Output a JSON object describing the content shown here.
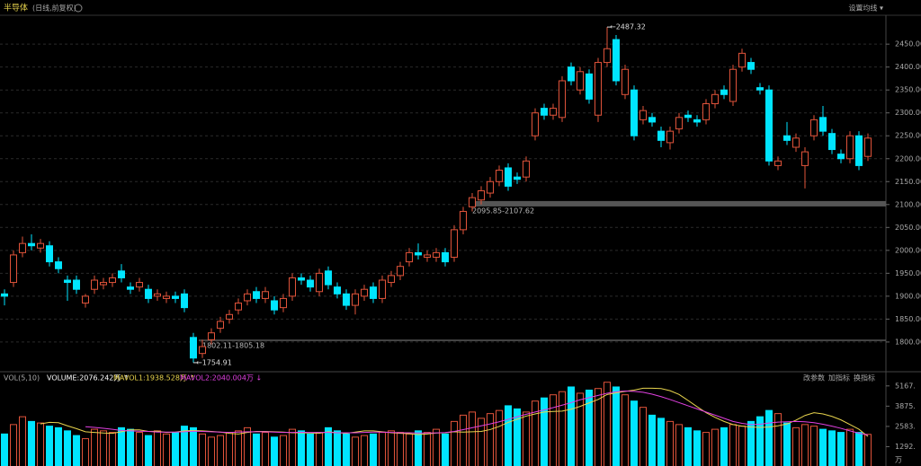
{
  "chart_data": {
    "type": "candlestick",
    "title": "半导体",
    "subtitle": "(日线,前复权)",
    "menu": "设置均线 ▾",
    "up_color": "#e0533a",
    "down_color": "#00e5ff",
    "ylim": [
      1743,
      2513
    ],
    "yticks": [
      {
        "value": 2450,
        "label": "2450.00"
      },
      {
        "value": 2400,
        "label": "2400.00"
      },
      {
        "value": 2350,
        "label": "2350.00"
      },
      {
        "value": 2300,
        "label": "2300.00"
      },
      {
        "value": 2250,
        "label": "2250.00"
      },
      {
        "value": 2200,
        "label": "2200.00"
      },
      {
        "value": 2150,
        "label": "2150.00"
      },
      {
        "value": 2100,
        "label": "2100.00"
      },
      {
        "value": 2050,
        "label": "2050.00"
      },
      {
        "value": 2000,
        "label": "2000.00"
      },
      {
        "value": 1950,
        "label": "1950.00"
      },
      {
        "value": 1900,
        "label": "1900.00"
      },
      {
        "value": 1850,
        "label": "1850.00"
      },
      {
        "value": 1800,
        "label": "1800.00"
      }
    ],
    "grid": true,
    "open": [
      1905,
      1930,
      1995,
      2015,
      2005,
      2010,
      1975,
      1935,
      1935,
      1885,
      1915,
      1925,
      1930,
      1955,
      1920,
      1920,
      1915,
      1900,
      1895,
      1900,
      1905,
      1810,
      1775,
      1805,
      1830,
      1850,
      1870,
      1890,
      1910,
      1895,
      1890,
      1875,
      1900,
      1940,
      1935,
      1910,
      1955,
      1920,
      1905,
      1880,
      1900,
      1920,
      1895,
      1930,
      1945,
      1975,
      1995,
      1985,
      1985,
      1995,
      1985,
      2045,
      2095,
      2110,
      2125,
      2150,
      2180,
      2160,
      2160,
      2250,
      2310,
      2295,
      2290,
      2400,
      2350,
      2385,
      2295,
      2410,
      2460,
      2340,
      2350,
      2285,
      2290,
      2260,
      2235,
      2265,
      2295,
      2285,
      2285,
      2320,
      2350,
      2325,
      2400,
      2410,
      2355,
      2350,
      2185,
      2250,
      2225,
      2185,
      2250,
      2290,
      2255,
      2210,
      2200,
      2250,
      2205
    ],
    "high": [
      1915,
      2000,
      2030,
      2035,
      2025,
      2020,
      1985,
      1945,
      1945,
      1905,
      1945,
      1940,
      1950,
      1970,
      1930,
      1940,
      1925,
      1915,
      1910,
      1910,
      1915,
      1820,
      1805,
      1830,
      1855,
      1870,
      1895,
      1915,
      1920,
      1920,
      1900,
      1905,
      1950,
      1950,
      1945,
      1960,
      1965,
      1930,
      1915,
      1915,
      1925,
      1930,
      1945,
      1955,
      1975,
      2005,
      2015,
      2000,
      2005,
      2005,
      2055,
      2095,
      2125,
      2140,
      2160,
      2185,
      2190,
      2170,
      2205,
      2310,
      2320,
      2320,
      2380,
      2410,
      2400,
      2395,
      2420,
      2487.32,
      2470,
      2405,
      2360,
      2315,
      2300,
      2270,
      2270,
      2300,
      2305,
      2295,
      2330,
      2350,
      2360,
      2405,
      2440,
      2420,
      2365,
      2360,
      2205,
      2280,
      2255,
      2225,
      2295,
      2315,
      2265,
      2220,
      2260,
      2260,
      2255
    ],
    "low": [
      1880,
      1920,
      1985,
      2000,
      1995,
      1965,
      1950,
      1890,
      1905,
      1875,
      1905,
      1915,
      1920,
      1930,
      1905,
      1910,
      1885,
      1890,
      1885,
      1885,
      1865,
      1754.91,
      1765,
      1795,
      1820,
      1840,
      1860,
      1880,
      1885,
      1885,
      1860,
      1865,
      1890,
      1925,
      1910,
      1900,
      1915,
      1895,
      1870,
      1860,
      1890,
      1885,
      1885,
      1920,
      1935,
      1965,
      1980,
      1975,
      1975,
      1965,
      1975,
      2035,
      2085,
      2100,
      2115,
      2140,
      2130,
      2145,
      2150,
      2240,
      2285,
      2285,
      2280,
      2360,
      2340,
      2320,
      2280,
      2400,
      2360,
      2330,
      2240,
      2275,
      2270,
      2225,
      2220,
      2255,
      2280,
      2270,
      2275,
      2310,
      2330,
      2315,
      2390,
      2385,
      2340,
      2185,
      2175,
      2230,
      2215,
      2135,
      2240,
      2250,
      2210,
      2190,
      2190,
      2175,
      2195
    ],
    "close": [
      1900,
      1990,
      2015,
      2010,
      2015,
      1975,
      1960,
      1930,
      1915,
      1900,
      1935,
      1930,
      1940,
      1940,
      1915,
      1930,
      1895,
      1905,
      1900,
      1895,
      1875,
      1765,
      1790,
      1820,
      1845,
      1860,
      1885,
      1905,
      1895,
      1910,
      1870,
      1895,
      1940,
      1935,
      1920,
      1950,
      1925,
      1905,
      1880,
      1905,
      1915,
      1895,
      1935,
      1945,
      1965,
      1995,
      1990,
      1990,
      1995,
      1975,
      2045,
      2085,
      2115,
      2130,
      2150,
      2175,
      2140,
      2155,
      2195,
      2300,
      2295,
      2310,
      2370,
      2370,
      2390,
      2330,
      2410,
      2440,
      2370,
      2395,
      2250,
      2305,
      2280,
      2240,
      2260,
      2290,
      2290,
      2280,
      2320,
      2340,
      2340,
      2395,
      2430,
      2395,
      2350,
      2195,
      2195,
      2240,
      2245,
      2215,
      2285,
      2260,
      2220,
      2200,
      2250,
      2185,
      2245
    ],
    "annotations": [
      {
        "label": "←2487.32",
        "value": 2487.32,
        "index": 67
      },
      {
        "label": "←1754.91",
        "value": 1754.91,
        "index": 21
      }
    ],
    "bands": [
      {
        "label": "2095.85-2107.62",
        "from": 2095.85,
        "to": 2107.62,
        "start": 52
      },
      {
        "label": "1802.11-1805.18",
        "from": 1802.11,
        "to": 1805.18,
        "start": 22
      }
    ],
    "volume": {
      "title": "VOL(5,10)",
      "readouts": [
        {
          "text": "VOLUME:2076.242万 ↑",
          "color": "#ffffff"
        },
        {
          "text": "MAVOL1:1938.528万 ↑",
          "color": "#e8d44d"
        },
        {
          "text": "MAVOL2:2040.004万 ↓",
          "color": "#e040e0"
        }
      ],
      "buttons": [
        "改参数",
        "加指标",
        "换指标"
      ],
      "ylim": [
        0,
        5728
      ],
      "yticks": [
        {
          "value": 5167,
          "label": "5167."
        },
        {
          "value": 3875,
          "label": "3875."
        },
        {
          "value": 2583,
          "label": "2583."
        },
        {
          "value": 1292,
          "label": "1292."
        }
      ],
      "unit": "万",
      "values": [
        2100,
        2700,
        3200,
        2900,
        2800,
        2600,
        2500,
        2300,
        2000,
        1800,
        2400,
        2300,
        2200,
        2500,
        2400,
        2200,
        2000,
        2300,
        2100,
        2200,
        2600,
        2500,
        2100,
        1900,
        2000,
        2200,
        2300,
        2500,
        2100,
        2200,
        1900,
        2000,
        2400,
        2300,
        2100,
        2200,
        2500,
        2300,
        2100,
        1900,
        2000,
        2100,
        2200,
        2300,
        2200,
        2100,
        2300,
        2200,
        2400,
        2100,
        2900,
        3300,
        3500,
        3100,
        3400,
        3600,
        3900,
        3700,
        3500,
        4200,
        4400,
        4600,
        4800,
        5100,
        4700,
        4900,
        5000,
        5400,
        5100,
        4600,
        4200,
        3800,
        3300,
        3100,
        2900,
        2700,
        2500,
        2300,
        2200,
        2400,
        2500,
        2700,
        2600,
        2900,
        3200,
        3600,
        3400,
        2800,
        2500,
        2700,
        2600,
        2400,
        2300,
        2200,
        2400,
        2200,
        2076.242
      ],
      "series": [
        {
          "name": "MAVOL1",
          "color": "#e8d44d",
          "values": [
            null,
            null,
            null,
            null,
            2740,
            2840,
            2820,
            2620,
            2440,
            2240,
            2200,
            2160,
            2140,
            2240,
            2360,
            2360,
            2260,
            2280,
            2200,
            2220,
            2300,
            2320,
            2300,
            2260,
            2220,
            2140,
            2100,
            2200,
            2260,
            2260,
            2240,
            2220,
            2180,
            2180,
            2160,
            2140,
            2240,
            2180,
            2140,
            2220,
            2300,
            2300,
            2240,
            2180,
            2140,
            2120,
            2060,
            2100,
            2160,
            2180,
            2240,
            2220,
            2240,
            2260,
            2380,
            2580,
            2840,
            3040,
            3240,
            3380,
            3500,
            3540,
            3560,
            3680,
            3860,
            4080,
            4300,
            4620,
            4720,
            4820,
            4900,
            5020,
            5020,
            5000,
            4860,
            4620,
            4240,
            3840,
            3460,
            3160,
            2900,
            2700,
            2600,
            2540,
            2520,
            2540,
            2620,
            2740,
            2980,
            3280,
            3460,
            3380,
            3220,
            3000,
            2700,
            2400,
            1938.528
          ]
        },
        {
          "name": "MAVOL2",
          "color": "#e040e0",
          "values": [
            null,
            null,
            null,
            null,
            null,
            null,
            null,
            null,
            null,
            2560,
            2520,
            2460,
            2400,
            2320,
            2300,
            2280,
            2260,
            2220,
            2220,
            2220,
            2240,
            2280,
            2260,
            2240,
            2220,
            2200,
            2220,
            2240,
            2240,
            2240,
            2220,
            2200,
            2200,
            2210,
            2200,
            2200,
            2200,
            2180,
            2180,
            2180,
            2200,
            2220,
            2220,
            2200,
            2180,
            2180,
            2160,
            2160,
            2170,
            2190,
            2260,
            2380,
            2500,
            2620,
            2740,
            2880,
            3040,
            3200,
            3360,
            3500,
            3640,
            3780,
            3940,
            4100,
            4280,
            4420,
            4560,
            4700,
            4800,
            4840,
            4820,
            4760,
            4640,
            4480,
            4300,
            4100,
            3900,
            3700,
            3500,
            3300,
            3100,
            2900,
            2780,
            2700,
            2720,
            2800,
            2860,
            2880,
            2900,
            2880,
            2820,
            2720,
            2600,
            2460,
            2300,
            2150,
            2040.004
          ]
        }
      ]
    }
  }
}
